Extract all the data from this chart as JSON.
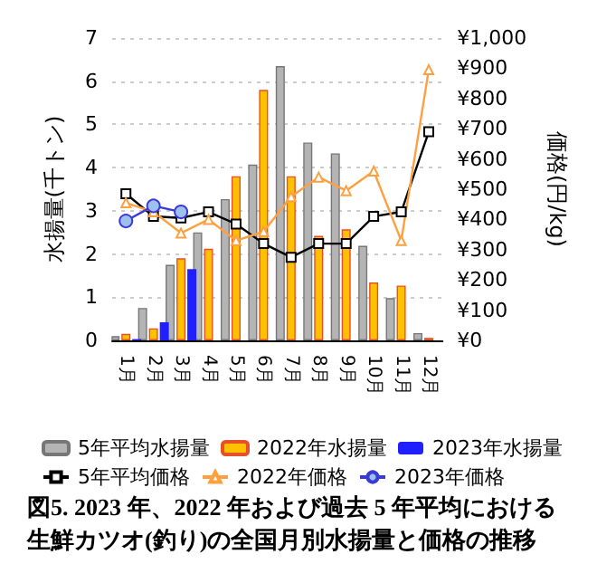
{
  "chart_data": {
    "type": "bar",
    "title": "図5. 2023 年、2022 年および過去 5 年平均における生鮮カツオ(釣り)の全国月別水揚量と価格の推移",
    "categories": [
      "1月",
      "2月",
      "3月",
      "4月",
      "5月",
      "6月",
      "7月",
      "8月",
      "9月",
      "10月",
      "11月",
      "12月"
    ],
    "ylabel": "水揚量(千トン)",
    "y2label": "価格(円/kg)",
    "ylim": [
      0,
      7
    ],
    "yticks": [
      0,
      1,
      2,
      3,
      4,
      5,
      6,
      7
    ],
    "y2lim": [
      0,
      1000
    ],
    "y2ticks": [
      {
        "value": 0,
        "label": "¥0"
      },
      {
        "value": 100,
        "label": "¥100"
      },
      {
        "value": 200,
        "label": "¥200"
      },
      {
        "value": 300,
        "label": "¥300"
      },
      {
        "value": 400,
        "label": "¥400"
      },
      {
        "value": 500,
        "label": "¥500"
      },
      {
        "value": 600,
        "label": "¥600"
      },
      {
        "value": 700,
        "label": "¥700"
      },
      {
        "value": 800,
        "label": "¥800"
      },
      {
        "value": 900,
        "label": "¥900"
      },
      {
        "value": 1000,
        "label": "¥1,000"
      }
    ],
    "grid": "y",
    "legend": "bottom",
    "series": [
      {
        "name": "5年平均水揚量",
        "color": "#b4b4b4",
        "values": [
          0.1,
          0.75,
          1.75,
          2.5,
          3.27,
          4.07,
          6.35,
          4.58,
          4.33,
          2.19,
          0.98,
          0.17
        ]
      },
      {
        "name": "2022年水揚量",
        "color": "#ffc000",
        "values": [
          0.15,
          0.28,
          1.9,
          2.12,
          3.8,
          5.8,
          3.8,
          2.42,
          2.57,
          1.34,
          1.27,
          0.06
        ]
      },
      {
        "name": "2023年水揚量",
        "color": "#2020ff",
        "values": [
          0.03,
          0.42,
          1.65,
          null,
          null,
          null,
          null,
          null,
          null,
          null,
          null,
          null
        ]
      },
      {
        "name": "5年平均価格",
        "type": "line",
        "axis": "y2",
        "marker": "square",
        "color": "#000000",
        "values": [
          485,
          410,
          405,
          425,
          385,
          320,
          275,
          320,
          320,
          410,
          425,
          690
        ]
      },
      {
        "name": "2022年価格",
        "type": "line",
        "axis": "y2",
        "marker": "triangle",
        "color": "#ffa040",
        "values": [
          455,
          425,
          355,
          400,
          330,
          360,
          475,
          540,
          495,
          560,
          330,
          895
        ]
      },
      {
        "name": "2023年価格",
        "type": "line",
        "axis": "y2",
        "marker": "circle",
        "color": "#3a3ad8",
        "values": [
          395,
          445,
          425,
          null,
          null,
          null,
          null,
          null,
          null,
          null,
          null,
          null
        ]
      }
    ]
  }
}
